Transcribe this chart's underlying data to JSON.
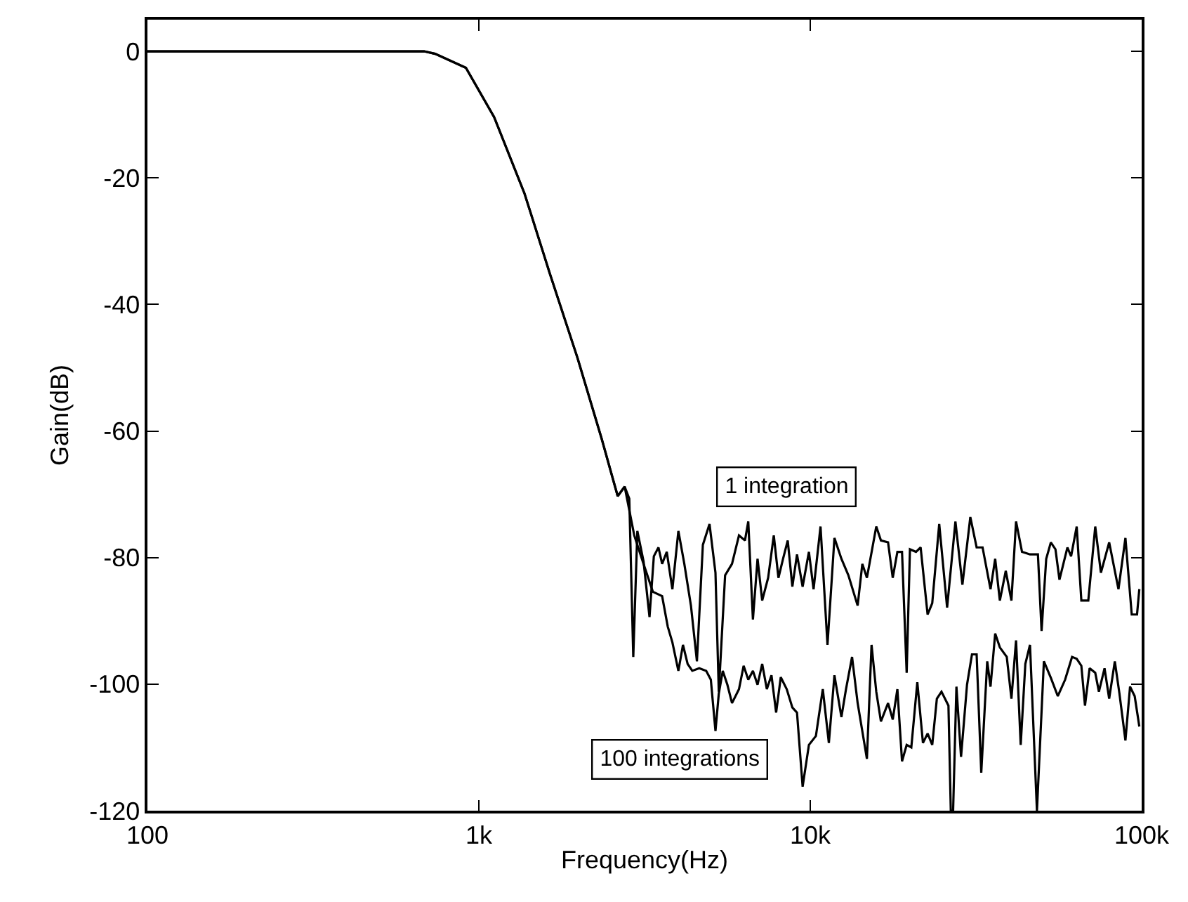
{
  "chart_data": {
    "type": "line",
    "xlabel": "Frequency(Hz)",
    "ylabel": "Gain(dB)",
    "log": "x",
    "xlim": [
      100,
      100000
    ],
    "xticks": [
      100,
      {
        "value": 1000,
        "label": "1k"
      },
      {
        "value": 10000,
        "label": "10k"
      },
      {
        "value": 100000,
        "label": "100k"
      }
    ],
    "ylim": [
      -120,
      5
    ],
    "yticks": [
      -120,
      -100,
      -80,
      -60,
      -40,
      -20,
      0
    ],
    "grid": false,
    "marker": "none",
    "line_style": "solid",
    "annotations": [
      "1 integration",
      "100 integrations"
    ],
    "series": [
      {
        "color": "#000000",
        "x": [
          100,
          684,
          738,
          914,
          1112,
          1374,
          1637,
          1986,
          2344,
          2624,
          2754,
          2844,
          2924,
          3008,
          3140,
          3273,
          3373,
          3483,
          3573,
          3690,
          3837,
          4000,
          4169,
          4365,
          4550,
          4742,
          4966,
          5176,
          5297,
          5534,
          5807,
          6095,
          6353,
          6501,
          6714,
          6934,
          7161,
          7464,
          7762,
          8017,
          8279,
          8551,
          8831,
          9120,
          9484,
          9908,
          10233,
          10740,
          11272,
          11830,
          12417,
          13032,
          13900,
          14360,
          14825,
          15820,
          16340,
          17170,
          17740,
          18320,
          18920,
          19540,
          19990,
          20850,
          21530,
          22600,
          23340,
          24500,
          25880,
          27420,
          28780,
          30410,
          31770,
          33110,
          34990,
          36140,
          37330,
          38900,
          40460,
          41780,
          43550,
          46030,
          48640,
          49890,
          51520,
          53210,
          54950,
          56490,
          59700,
          61240,
          63680,
          65770,
          69020,
          72440,
          75340,
          79800,
          85110,
          89330,
          93330,
          96830,
          98390
        ],
        "values": [
          0,
          0,
          -0.4,
          -2.6,
          -10.4,
          -22.5,
          -35.1,
          -48.5,
          -61.1,
          -70.3,
          -68.8,
          -70.7,
          -95.7,
          -75.8,
          -80.6,
          -89.4,
          -79.8,
          -78.4,
          -81.0,
          -79.1,
          -85.0,
          -75.8,
          -81.0,
          -87.6,
          -96.4,
          -78.0,
          -74.7,
          -82.4,
          -101.2,
          -82.8,
          -81.0,
          -76.5,
          -77.3,
          -74.3,
          -89.8,
          -80.2,
          -86.8,
          -83.2,
          -76.5,
          -83.2,
          -80.2,
          -77.3,
          -84.6,
          -79.5,
          -84.6,
          -79.1,
          -85.0,
          -75.1,
          -93.8,
          -76.9,
          -80.2,
          -82.8,
          -87.6,
          -81.0,
          -83.2,
          -75.1,
          -77.3,
          -77.6,
          -83.2,
          -79.1,
          -79.1,
          -98.2,
          -78.7,
          -79.1,
          -78.4,
          -89.0,
          -87.2,
          -74.7,
          -87.9,
          -74.3,
          -84.3,
          -73.6,
          -78.4,
          -78.4,
          -85.0,
          -80.2,
          -86.8,
          -82.1,
          -86.8,
          -74.3,
          -79.1,
          -79.5,
          -79.5,
          -91.6,
          -80.2,
          -77.6,
          -78.7,
          -83.5,
          -78.4,
          -79.8,
          -75.1,
          -86.8,
          -86.8,
          -75.1,
          -82.4,
          -77.6,
          -85.0,
          -76.9,
          -89.0,
          -89.0,
          -85.0
        ]
      },
      {
        "color": "#000000",
        "x": [
          100,
          684,
          738,
          914,
          1112,
          1374,
          1637,
          1986,
          2344,
          2624,
          2754,
          2944,
          3140,
          3350,
          3573,
          3715,
          3837,
          4000,
          4130,
          4266,
          4406,
          4624,
          4853,
          5012,
          5176,
          5297,
          5445,
          5623,
          5807,
          6095,
          6295,
          6501,
          6714,
          6934,
          7161,
          7396,
          7638,
          7889,
          8147,
          8492,
          8831,
          9120,
          9484,
          9908,
          10400,
          10910,
          11380,
          11830,
          12417,
          12820,
          13370,
          13900,
          14825,
          15310,
          15820,
          16340,
          17170,
          17740,
          18320,
          18920,
          19540,
          20180,
          21040,
          21880,
          22600,
          23340,
          24100,
          24890,
          26120,
          26550,
          26980,
          27610,
          28510,
          29720,
          30760,
          31770,
          32810,
          34200,
          34990,
          36140,
          37330,
          39170,
          40460,
          41780,
          43150,
          44570,
          46030,
          48310,
          50700,
          53210,
          55850,
          58750,
          61660,
          63680,
          65770,
          67450,
          69660,
          72440,
          74300,
          77270,
          79800,
          82990,
          85700,
          89330,
          92260,
          95280,
          98390
        ],
        "values": [
          0,
          0,
          -0.4,
          -2.6,
          -10.4,
          -22.5,
          -35.1,
          -48.5,
          -61.1,
          -70.3,
          -68.8,
          -76.5,
          -81.0,
          -85.4,
          -86.1,
          -90.9,
          -93.4,
          -97.9,
          -93.8,
          -96.8,
          -97.9,
          -97.5,
          -97.9,
          -99.3,
          -107.4,
          -101.5,
          -97.9,
          -100.1,
          -103.0,
          -100.8,
          -97.1,
          -99.3,
          -97.9,
          -100.1,
          -96.8,
          -100.8,
          -98.6,
          -104.5,
          -98.9,
          -100.8,
          -103.7,
          -104.5,
          -116.2,
          -109.6,
          -108.2,
          -100.8,
          -109.3,
          -98.6,
          -105.2,
          -100.8,
          -95.7,
          -103.0,
          -111.8,
          -93.8,
          -101.2,
          -105.9,
          -103.0,
          -105.6,
          -100.8,
          -112.2,
          -109.6,
          -110.0,
          -99.7,
          -109.3,
          -107.8,
          -109.6,
          -102.3,
          -101.2,
          -103.4,
          -120,
          -120,
          -100.4,
          -111.5,
          -100.1,
          -95.3,
          -95.3,
          -114.0,
          -96.4,
          -100.4,
          -92.0,
          -94.2,
          -95.7,
          -102.3,
          -93.1,
          -109.6,
          -96.8,
          -93.8,
          -120,
          -96.4,
          -99.0,
          -101.9,
          -99.3,
          -95.7,
          -96.0,
          -97.1,
          -103.4,
          -97.5,
          -98.2,
          -101.2,
          -97.5,
          -102.3,
          -96.4,
          -101.5,
          -108.9,
          -100.4,
          -101.9,
          -106.7
        ]
      }
    ]
  }
}
